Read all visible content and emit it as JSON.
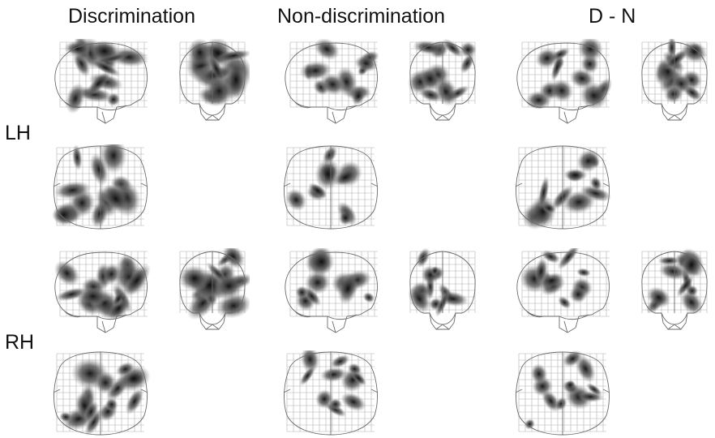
{
  "columns": [
    "Discrimination",
    "Non-discrimination",
    "D - N"
  ],
  "rows": [
    "LH",
    "RH"
  ],
  "colors": {
    "blob": "#222222",
    "grid": "#b0b0b0",
    "outline": "#6a6a6a"
  },
  "views": [
    "sagittal",
    "coronal",
    "axial"
  ]
}
